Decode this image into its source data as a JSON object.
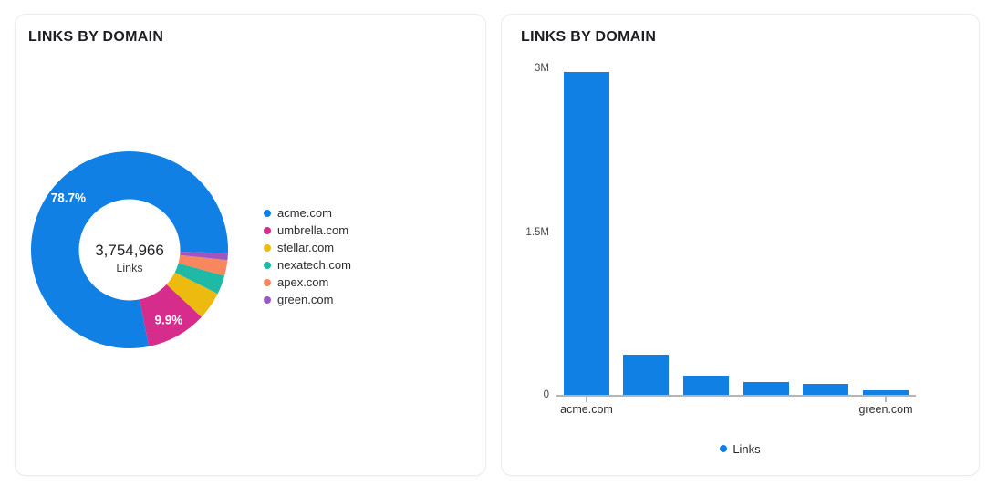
{
  "cards": [
    {
      "title": "LINKS BY DOMAIN"
    },
    {
      "title": "LINKS BY DOMAIN"
    }
  ],
  "chart_data": [
    {
      "type": "pie",
      "subtype": "donut",
      "title": "LINKS BY DOMAIN",
      "center_total_value": "3,754,966",
      "center_total_label": "Links",
      "legend_position": "right",
      "slices": [
        {
          "label": "acme.com",
          "value": 2955158,
          "percent": 78.7,
          "percent_label": "78.7%",
          "color": "#1180e5"
        },
        {
          "label": "umbrella.com",
          "value": 371742,
          "percent": 9.9,
          "percent_label": "9.9%",
          "color": "#d62c8c"
        },
        {
          "label": "stellar.com",
          "value": 172728,
          "percent": 4.6,
          "percent_label": "",
          "color": "#edba10"
        },
        {
          "label": "nexatech.com",
          "value": 116404,
          "percent": 3.1,
          "percent_label": "",
          "color": "#1fb9a6"
        },
        {
          "label": "apex.com",
          "value": 97629,
          "percent": 2.6,
          "percent_label": "",
          "color": "#f9875e"
        },
        {
          "label": "green.com",
          "value": 41305,
          "percent": 1.1,
          "percent_label": "",
          "color": "#9c57c5"
        }
      ]
    },
    {
      "type": "bar",
      "title": "LINKS BY DOMAIN",
      "series_name": "Links",
      "legend_label": "Links",
      "legend_position": "bottom",
      "bar_color": "#1180e5",
      "categories": [
        "acme.com",
        "umbrella.com",
        "stellar.com",
        "nexatech.com",
        "apex.com",
        "green.com"
      ],
      "values": [
        2955158,
        371742,
        172728,
        116404,
        97629,
        41305
      ],
      "ylim": [
        0,
        3000000
      ],
      "yticks": [
        {
          "label": "3M",
          "value": 3000000
        },
        {
          "label": "1.5M",
          "value": 1500000
        },
        {
          "label": "0",
          "value": 0
        }
      ],
      "xtick_labels_shown": [
        "acme.com",
        "green.com"
      ],
      "grid": false
    }
  ]
}
